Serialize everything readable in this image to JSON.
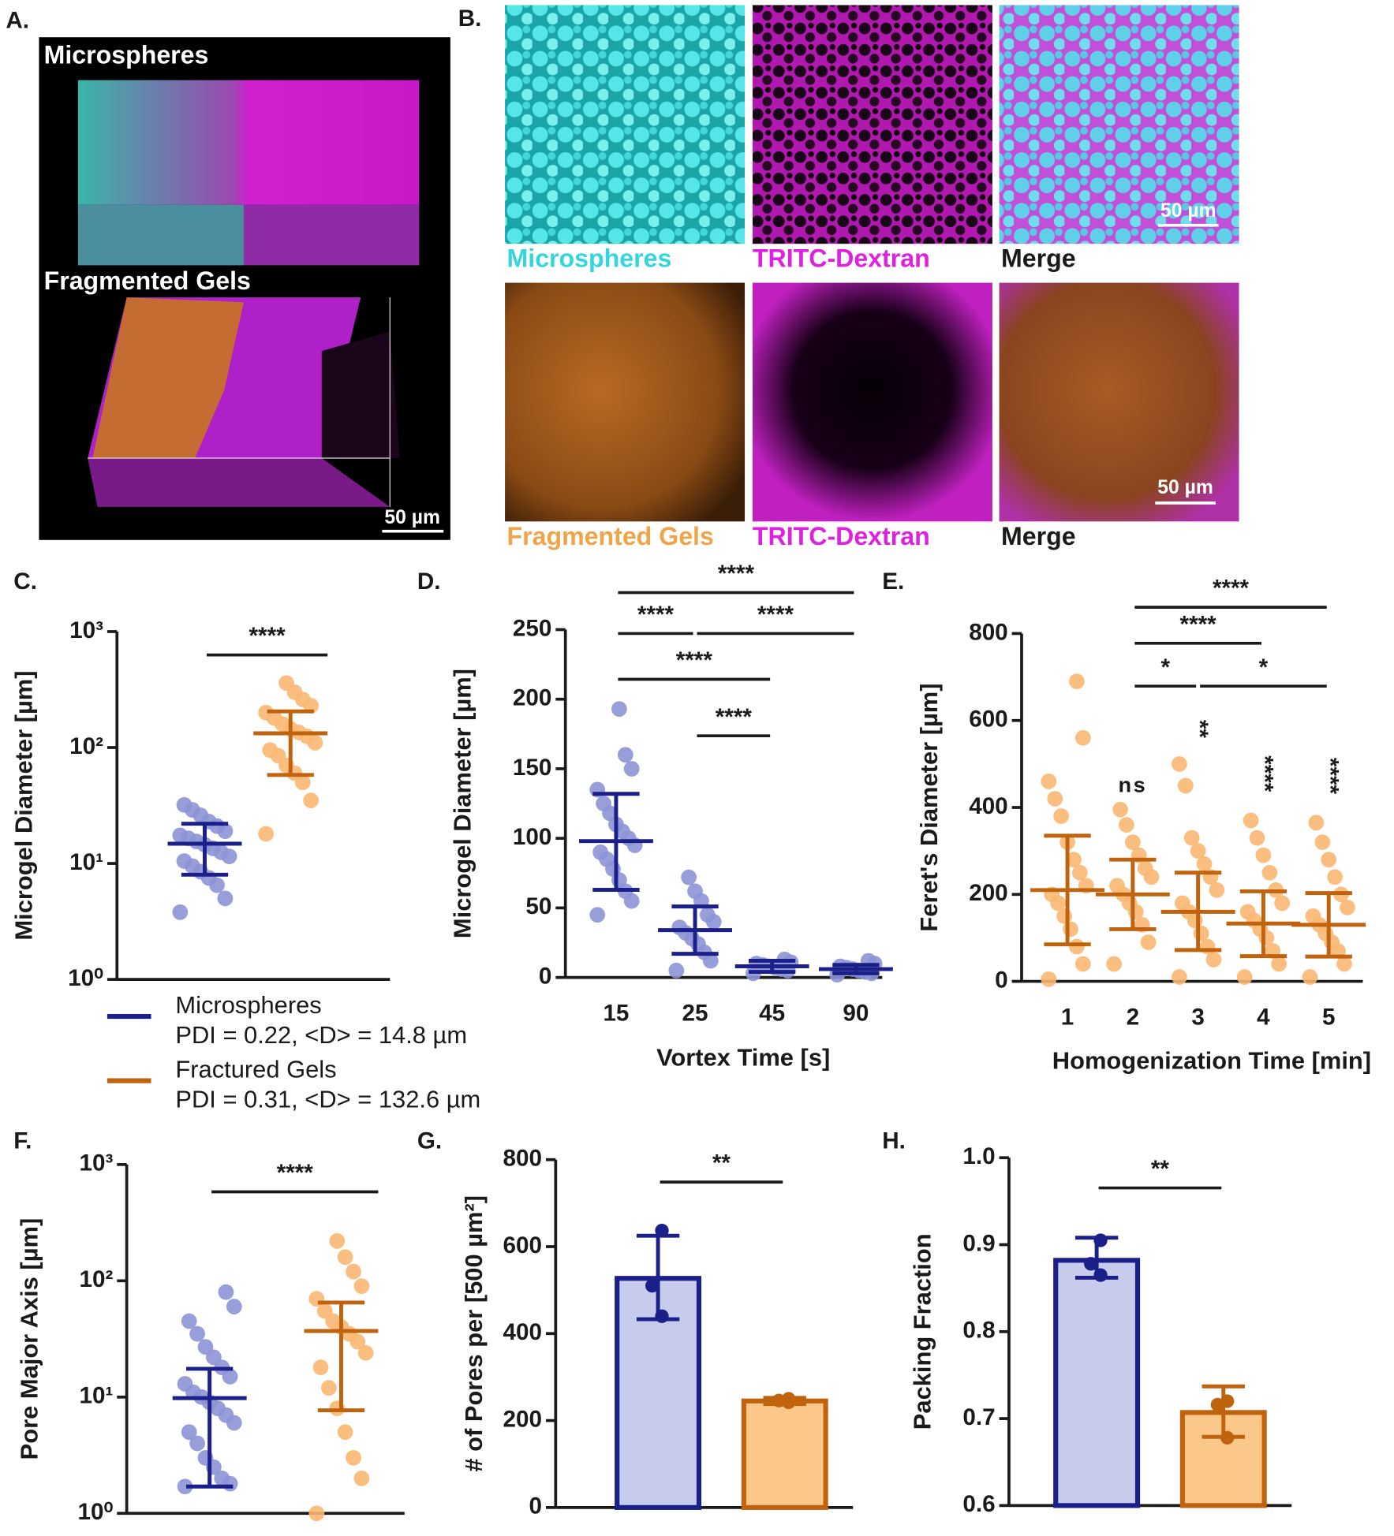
{
  "figure_panels": [
    {
      "panel": "A.",
      "titles": [
        "Microspheres",
        "Fragmented Gels"
      ],
      "scale_bar": "50 µm"
    },
    {
      "panel": "B.",
      "captions": [
        [
          "Microspheres",
          "TRITC-Dextran",
          "Merge"
        ],
        [
          "Fragmented Gels",
          "TRITC-Dextran",
          "Merge"
        ]
      ],
      "scale_bars": [
        "50 µm",
        "50 µm"
      ]
    }
  ],
  "chart_data": [
    {
      "panel": "C.",
      "type": "dot_plot",
      "log_y": true,
      "ylabel": "Microgel Diameter [µm]",
      "ylim": [
        1,
        1000
      ],
      "yticks": [
        {
          "value": 1,
          "label": "10⁰"
        },
        {
          "value": 10,
          "label": "10¹"
        },
        {
          "value": 100,
          "label": "10²"
        },
        {
          "value": 1000,
          "label": "10³"
        }
      ],
      "groups": [
        {
          "name": "Microspheres",
          "note": "PDI = 0.22, <D> = 14.8 µm",
          "color": "#1b1f8a",
          "point_color": "#8c93d6",
          "mean": 14.8,
          "sd": [
            8,
            22
          ],
          "points": [
            3.8,
            5,
            6.5,
            7.5,
            8.5,
            9.5,
            10.5,
            11.5,
            12.5,
            13.5,
            14.5,
            15.5,
            16.5,
            17.5,
            19,
            21,
            23,
            26,
            29,
            32
          ]
        },
        {
          "name": "Fractured Gels",
          "note": "PDI = 0.31, <D> = 132.6 µm",
          "color": "#c0630f",
          "point_color": "#f9b872",
          "mean": 132.6,
          "sd": [
            58,
            205
          ],
          "points": [
            18,
            35,
            50,
            60,
            70,
            85,
            95,
            110,
            125,
            135,
            145,
            160,
            180,
            200,
            230,
            260,
            300,
            360
          ]
        }
      ],
      "comparisons": [
        {
          "label": "****"
        }
      ]
    },
    {
      "panel": "D.",
      "type": "dot_plot",
      "log_y": false,
      "ylabel": "Microgel Diameter [µm]",
      "xlabel": "Vortex Time [s]",
      "categories": [
        15,
        25,
        45,
        90
      ],
      "ylim": [
        0,
        250
      ],
      "yticks": [
        0,
        50,
        100,
        150,
        200,
        250
      ],
      "groups": [
        {
          "color": "#1b1f8a",
          "point_color": "#8c93d6",
          "mean": 98,
          "sd": [
            63,
            132
          ],
          "points": [
            45,
            55,
            62,
            70,
            78,
            85,
            90,
            95,
            100,
            105,
            110,
            118,
            125,
            135,
            150,
            160,
            193
          ]
        },
        {
          "color": "#1b1f8a",
          "point_color": "#8c93d6",
          "mean": 34,
          "sd": [
            17,
            51
          ],
          "points": [
            5,
            12,
            18,
            24,
            28,
            32,
            36,
            40,
            45,
            55,
            62,
            72
          ]
        },
        {
          "color": "#1b1f8a",
          "point_color": "#8c93d6",
          "mean": 8,
          "sd": [
            4,
            12
          ],
          "points": [
            3,
            5,
            6,
            7,
            8,
            9,
            10,
            11,
            13
          ]
        },
        {
          "color": "#1b1f8a",
          "point_color": "#8c93d6",
          "mean": 6,
          "sd": [
            3,
            9
          ],
          "points": [
            2,
            3,
            4,
            5,
            6,
            7,
            8,
            10,
            12
          ]
        }
      ],
      "comparisons": [
        {
          "between": [
            15,
            90
          ],
          "label": "****"
        },
        {
          "between": [
            15,
            25
          ],
          "label": "****"
        },
        {
          "between": [
            25,
            90
          ],
          "label": "****"
        },
        {
          "between": [
            15,
            45
          ],
          "label": "****"
        },
        {
          "between": [
            25,
            45
          ],
          "label": "****"
        }
      ]
    },
    {
      "panel": "E.",
      "type": "dot_plot",
      "log_y": false,
      "ylabel": "Feret's Diameter [µm]",
      "xlabel": "Homogenization Time [min]",
      "categories": [
        1,
        2,
        3,
        4,
        5
      ],
      "ylim": [
        0,
        800
      ],
      "yticks": [
        0,
        200,
        400,
        600,
        800
      ],
      "groups": [
        {
          "color": "#c0630f",
          "point_color": "#f9b872",
          "mean": 210,
          "sd": [
            85,
            335
          ],
          "points": [
            5,
            40,
            80,
            120,
            150,
            180,
            200,
            220,
            250,
            280,
            320,
            380,
            420,
            460,
            560,
            690
          ]
        },
        {
          "color": "#c0630f",
          "point_color": "#f9b872",
          "mean": 200,
          "sd": [
            120,
            280
          ],
          "points": [
            40,
            90,
            130,
            160,
            180,
            200,
            220,
            240,
            260,
            290,
            320,
            360,
            395
          ]
        },
        {
          "color": "#c0630f",
          "point_color": "#f9b872",
          "mean": 160,
          "sd": [
            72,
            250
          ],
          "points": [
            10,
            50,
            80,
            110,
            140,
            160,
            180,
            210,
            240,
            270,
            300,
            330,
            450,
            500
          ]
        },
        {
          "color": "#c0630f",
          "point_color": "#f9b872",
          "mean": 133,
          "sd": [
            58,
            207
          ],
          "points": [
            10,
            40,
            70,
            100,
            120,
            140,
            160,
            180,
            210,
            250,
            290,
            330,
            370
          ]
        },
        {
          "color": "#c0630f",
          "point_color": "#f9b872",
          "mean": 130,
          "sd": [
            57,
            203
          ],
          "points": [
            10,
            40,
            70,
            90,
            110,
            130,
            150,
            170,
            200,
            240,
            280,
            320,
            365
          ]
        }
      ],
      "group_labels": [
        null,
        "ns",
        "**",
        "****",
        "****"
      ],
      "comparisons": [
        {
          "between": [
            2,
            5
          ],
          "label": "****"
        },
        {
          "between": [
            2,
            4
          ],
          "label": "****"
        },
        {
          "between": [
            2,
            3
          ],
          "label": "*"
        },
        {
          "between": [
            3,
            5
          ],
          "label": "*"
        }
      ]
    },
    {
      "panel": "F.",
      "type": "dot_plot",
      "log_y": true,
      "ylabel": "Pore Major Axis [µm]",
      "ylim": [
        1,
        1000
      ],
      "yticks": [
        {
          "value": 1,
          "label": "10⁰"
        },
        {
          "value": 10,
          "label": "10¹"
        },
        {
          "value": 100,
          "label": "10²"
        },
        {
          "value": 1000,
          "label": "10³"
        }
      ],
      "groups": [
        {
          "color": "#1b1f8a",
          "point_color": "#8c93d6",
          "mean": 9.8,
          "sd": [
            1.7,
            17.5
          ],
          "points": [
            1.7,
            1.8,
            2,
            2.5,
            3,
            4,
            5,
            6,
            7,
            8,
            9,
            10,
            11,
            13,
            15,
            18,
            22,
            27,
            35,
            45,
            60,
            80
          ]
        },
        {
          "color": "#c0630f",
          "point_color": "#f9b872",
          "mean": 37,
          "sd": [
            7.7,
            65
          ],
          "points": [
            1,
            2,
            3,
            5,
            8,
            12,
            18,
            24,
            30,
            35,
            40,
            45,
            55,
            70,
            90,
            120,
            160,
            220
          ]
        }
      ],
      "comparisons": [
        {
          "label": "****"
        }
      ]
    },
    {
      "panel": "G.",
      "type": "bar",
      "ylabel": "# of Pores per [500 µm²]",
      "ylim": [
        0,
        800
      ],
      "yticks": [
        0,
        200,
        400,
        600,
        800
      ],
      "groups": [
        {
          "color": "#1b1f8a",
          "fill": "#c7cbec",
          "value": 527,
          "sd": [
            433,
            625
          ],
          "points": [
            637,
            510,
            440
          ]
        },
        {
          "color": "#c0630f",
          "fill": "#fcc88a",
          "value": 245,
          "sd": [
            238,
            252
          ],
          "points": [
            250,
            246,
            242
          ]
        }
      ],
      "comparisons": [
        {
          "label": "**"
        }
      ]
    },
    {
      "panel": "H.",
      "type": "bar",
      "ylabel": "Packing Fraction",
      "ylim": [
        0.6,
        1
      ],
      "yticks": [
        0.6,
        0.7,
        0.8,
        0.9,
        {
          "value": 1,
          "label": "1.0"
        }
      ],
      "groups": [
        {
          "color": "#1b1f8a",
          "fill": "#c7cbec",
          "value": 0.882,
          "sd": [
            0.862,
            0.908
          ],
          "points": [
            0.905,
            0.878,
            0.865
          ]
        },
        {
          "color": "#c0630f",
          "fill": "#fcc88a",
          "value": 0.707,
          "sd": [
            0.679,
            0.737
          ],
          "points": [
            0.72,
            0.716,
            0.678
          ]
        }
      ],
      "comparisons": [
        {
          "label": "**"
        }
      ]
    }
  ]
}
